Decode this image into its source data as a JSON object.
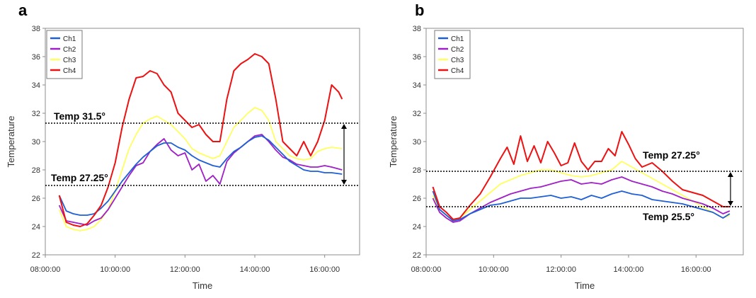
{
  "colors": {
    "ch1": "#1f5fd6",
    "ch2": "#a020c8",
    "ch3": "#ffff60",
    "ch4": "#ee1111"
  },
  "chart_data": [
    {
      "panel": "a",
      "type": "line",
      "xlabel": "Time",
      "ylabel": "Temperature",
      "ylim": [
        22,
        38
      ],
      "yticks": [
        22,
        24,
        26,
        28,
        30,
        32,
        34,
        36,
        38
      ],
      "xlim": [
        8,
        17
      ],
      "xticks": [
        {
          "v": 8,
          "label": "08:00:00"
        },
        {
          "v": 10,
          "label": "10:00:00"
        },
        {
          "v": 12,
          "label": "12:00:00"
        },
        {
          "v": 14,
          "label": "14:00:00"
        },
        {
          "v": 16,
          "label": "16:00:00"
        }
      ],
      "legend": [
        "Ch1",
        "Ch2",
        "Ch3",
        "Ch4"
      ],
      "series": [
        {
          "name": "Ch1",
          "x": [
            8.4,
            8.6,
            8.8,
            9.0,
            9.2,
            9.4,
            9.6,
            9.8,
            10.0,
            10.2,
            10.4,
            10.6,
            10.8,
            11.0,
            11.2,
            11.4,
            11.6,
            11.8,
            12.0,
            12.2,
            12.4,
            12.6,
            12.8,
            13.0,
            13.2,
            13.4,
            13.6,
            13.8,
            14.0,
            14.2,
            14.4,
            14.6,
            14.8,
            15.0,
            15.2,
            15.4,
            15.6,
            15.8,
            16.0,
            16.2,
            16.5
          ],
          "y": [
            26.2,
            25.1,
            24.9,
            24.8,
            24.8,
            24.9,
            25.3,
            25.8,
            26.5,
            27.2,
            27.8,
            28.4,
            28.9,
            29.3,
            29.7,
            29.9,
            29.9,
            29.6,
            29.4,
            29.0,
            28.7,
            28.5,
            28.3,
            28.2,
            28.8,
            29.3,
            29.6,
            30.0,
            30.3,
            30.4,
            30.1,
            29.6,
            29.1,
            28.6,
            28.3,
            28.0,
            27.9,
            27.9,
            27.8,
            27.8,
            27.7
          ]
        },
        {
          "name": "Ch2",
          "x": [
            8.4,
            8.6,
            8.8,
            9.0,
            9.2,
            9.4,
            9.6,
            9.8,
            10.0,
            10.2,
            10.4,
            10.6,
            10.8,
            11.0,
            11.2,
            11.4,
            11.6,
            11.8,
            12.0,
            12.2,
            12.4,
            12.6,
            12.8,
            13.0,
            13.2,
            13.4,
            13.6,
            13.8,
            14.0,
            14.2,
            14.4,
            14.6,
            14.8,
            15.0,
            15.2,
            15.4,
            15.6,
            15.8,
            16.0,
            16.2,
            16.5
          ],
          "y": [
            25.5,
            24.4,
            24.3,
            24.2,
            24.1,
            24.4,
            24.6,
            25.2,
            26.0,
            26.8,
            27.6,
            28.3,
            28.5,
            29.3,
            29.8,
            30.2,
            29.4,
            29.0,
            29.2,
            28.0,
            28.4,
            27.2,
            27.6,
            27.0,
            28.6,
            29.2,
            29.6,
            30.0,
            30.4,
            30.5,
            30.0,
            29.4,
            28.9,
            28.7,
            28.4,
            28.3,
            28.2,
            28.2,
            28.3,
            28.2,
            28.0
          ]
        },
        {
          "name": "Ch3",
          "x": [
            8.4,
            8.6,
            8.8,
            9.0,
            9.2,
            9.4,
            9.6,
            9.8,
            10.0,
            10.2,
            10.4,
            10.6,
            10.8,
            11.0,
            11.2,
            11.4,
            11.6,
            11.8,
            12.0,
            12.2,
            12.4,
            12.6,
            12.8,
            13.0,
            13.2,
            13.4,
            13.6,
            13.8,
            14.0,
            14.2,
            14.4,
            14.6,
            14.8,
            15.0,
            15.2,
            15.4,
            15.6,
            15.8,
            16.0,
            16.2,
            16.5
          ],
          "y": [
            25.2,
            24.0,
            23.8,
            23.7,
            23.8,
            24.0,
            24.5,
            25.2,
            26.5,
            28.0,
            29.5,
            30.5,
            31.3,
            31.6,
            31.8,
            31.5,
            31.2,
            30.7,
            30.2,
            29.5,
            29.2,
            29.0,
            28.8,
            29.0,
            30.0,
            31.0,
            31.5,
            32.0,
            32.4,
            32.2,
            31.5,
            30.0,
            29.5,
            29.0,
            28.8,
            28.7,
            28.8,
            29.3,
            29.5,
            29.6,
            29.5
          ]
        },
        {
          "name": "Ch4",
          "x": [
            8.4,
            8.6,
            8.8,
            9.0,
            9.2,
            9.4,
            9.6,
            9.8,
            10.0,
            10.2,
            10.4,
            10.6,
            10.8,
            11.0,
            11.2,
            11.4,
            11.6,
            11.8,
            12.0,
            12.2,
            12.4,
            12.6,
            12.8,
            13.0,
            13.2,
            13.4,
            13.6,
            13.8,
            14.0,
            14.2,
            14.4,
            14.6,
            14.8,
            15.0,
            15.2,
            15.4,
            15.6,
            15.8,
            16.0,
            16.2,
            16.4,
            16.5
          ],
          "y": [
            26.2,
            24.3,
            24.1,
            24.0,
            24.2,
            24.8,
            25.5,
            26.8,
            28.5,
            31.0,
            33.0,
            34.5,
            34.6,
            35.0,
            34.8,
            34.0,
            33.5,
            32.0,
            31.5,
            31.0,
            31.2,
            30.5,
            30.0,
            30.0,
            33.0,
            35.0,
            35.5,
            35.8,
            36.2,
            36.0,
            35.5,
            33.0,
            30.0,
            29.5,
            29.0,
            30.0,
            29.0,
            30.0,
            31.5,
            34.0,
            33.5,
            33.0
          ]
        }
      ],
      "annotations": [
        {
          "label": "Temp 31.5°",
          "y": 31.3
        },
        {
          "label": "Temp 27.25°",
          "y": 26.9
        }
      ]
    },
    {
      "panel": "b",
      "type": "line",
      "xlabel": "Time",
      "ylabel": "Temperature",
      "ylim": [
        22,
        38
      ],
      "yticks": [
        22,
        24,
        26,
        28,
        30,
        32,
        34,
        36,
        38
      ],
      "xlim": [
        8,
        17.4
      ],
      "xticks": [
        {
          "v": 8,
          "label": "08:00:00"
        },
        {
          "v": 10,
          "label": "10:00:00"
        },
        {
          "v": 12,
          "label": "12:00:00"
        },
        {
          "v": 14,
          "label": "14:00:00"
        },
        {
          "v": 16,
          "label": "16:00:00"
        }
      ],
      "legend": [
        "Ch1",
        "Ch2",
        "Ch3",
        "Ch4"
      ],
      "series": [
        {
          "name": "Ch1",
          "x": [
            8.2,
            8.4,
            8.6,
            8.8,
            9.0,
            9.3,
            9.6,
            9.9,
            10.2,
            10.5,
            10.8,
            11.1,
            11.4,
            11.7,
            12.0,
            12.3,
            12.6,
            12.9,
            13.2,
            13.5,
            13.8,
            14.1,
            14.4,
            14.7,
            15.0,
            15.3,
            15.6,
            15.9,
            16.2,
            16.5,
            16.8,
            17.0
          ],
          "y": [
            26.5,
            25.2,
            24.8,
            24.4,
            24.5,
            24.9,
            25.2,
            25.5,
            25.6,
            25.8,
            26.0,
            26.0,
            26.1,
            26.2,
            26.0,
            26.1,
            25.9,
            26.2,
            26.0,
            26.3,
            26.5,
            26.3,
            26.2,
            25.9,
            25.8,
            25.7,
            25.6,
            25.4,
            25.2,
            25.0,
            24.6,
            24.9
          ]
        },
        {
          "name": "Ch2",
          "x": [
            8.2,
            8.4,
            8.6,
            8.8,
            9.0,
            9.3,
            9.6,
            9.9,
            10.2,
            10.5,
            10.8,
            11.1,
            11.4,
            11.7,
            12.0,
            12.3,
            12.6,
            12.9,
            13.2,
            13.5,
            13.8,
            14.1,
            14.4,
            14.7,
            15.0,
            15.3,
            15.6,
            15.9,
            16.2,
            16.5,
            16.8,
            17.0
          ],
          "y": [
            26.0,
            25.0,
            24.6,
            24.3,
            24.4,
            24.9,
            25.3,
            25.7,
            26.0,
            26.3,
            26.5,
            26.7,
            26.8,
            27.0,
            27.2,
            27.3,
            27.0,
            27.1,
            27.0,
            27.3,
            27.5,
            27.2,
            27.0,
            26.8,
            26.5,
            26.3,
            26.0,
            25.8,
            25.6,
            25.3,
            24.9,
            25.1
          ]
        },
        {
          "name": "Ch3",
          "x": [
            8.2,
            8.4,
            8.6,
            8.8,
            9.0,
            9.3,
            9.6,
            9.9,
            10.2,
            10.5,
            10.8,
            11.1,
            11.4,
            11.7,
            12.0,
            12.3,
            12.6,
            12.9,
            13.2,
            13.5,
            13.8,
            14.1,
            14.4,
            14.7,
            15.0,
            15.3,
            15.6,
            15.9,
            16.2,
            16.5,
            16.8,
            17.0
          ],
          "y": [
            26.2,
            25.2,
            24.8,
            24.4,
            24.6,
            25.2,
            25.8,
            26.4,
            27.0,
            27.3,
            27.6,
            27.8,
            28.0,
            28.0,
            27.8,
            27.6,
            27.5,
            27.6,
            27.8,
            28.0,
            28.6,
            28.2,
            27.8,
            27.4,
            27.0,
            26.6,
            26.2,
            25.8,
            25.4,
            25.0,
            24.6,
            24.8
          ]
        },
        {
          "name": "Ch4",
          "x": [
            8.2,
            8.4,
            8.6,
            8.8,
            9.0,
            9.3,
            9.6,
            9.9,
            10.2,
            10.4,
            10.6,
            10.8,
            11.0,
            11.2,
            11.4,
            11.6,
            11.8,
            12.0,
            12.2,
            12.4,
            12.6,
            12.8,
            13.0,
            13.2,
            13.4,
            13.6,
            13.8,
            14.0,
            14.2,
            14.4,
            14.7,
            15.0,
            15.3,
            15.6,
            15.9,
            16.2,
            16.5,
            16.8,
            17.0
          ],
          "y": [
            26.8,
            25.4,
            25.0,
            24.5,
            24.6,
            25.5,
            26.3,
            27.5,
            28.8,
            29.6,
            28.4,
            30.4,
            28.6,
            29.7,
            28.5,
            30.0,
            29.2,
            28.3,
            28.5,
            29.9,
            28.6,
            28.0,
            28.6,
            28.6,
            29.5,
            29.0,
            30.7,
            29.8,
            28.8,
            28.2,
            28.5,
            27.9,
            27.2,
            26.6,
            26.4,
            26.2,
            25.8,
            25.4,
            25.4
          ]
        }
      ],
      "annotations": [
        {
          "label": "Temp 27.25°",
          "y": 27.9
        },
        {
          "label": "Temp 25.5°",
          "y": 25.4
        }
      ]
    }
  ]
}
